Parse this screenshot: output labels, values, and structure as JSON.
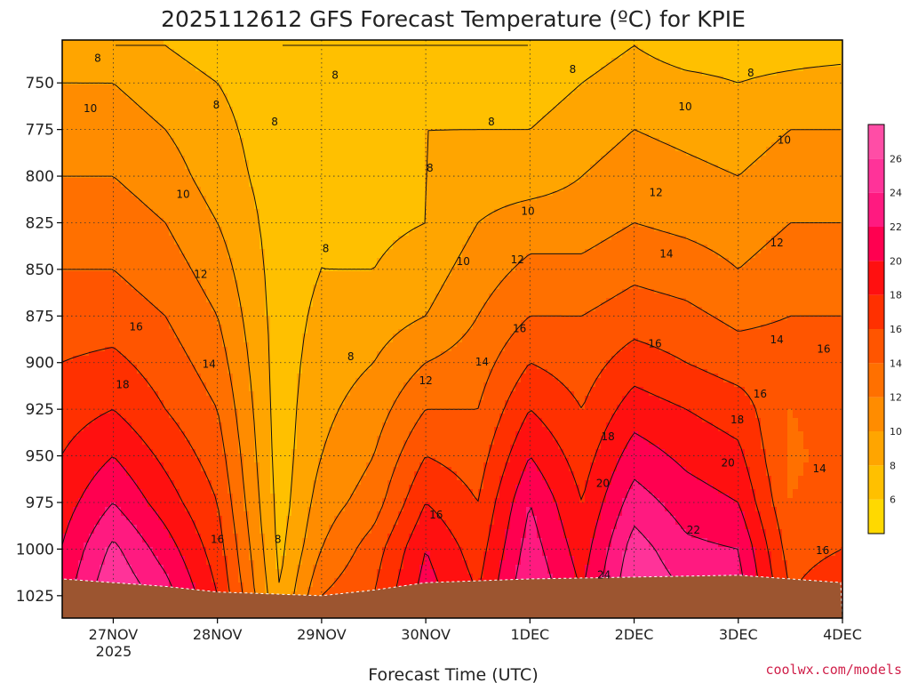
{
  "chart_data": {
    "type": "heatmap",
    "title": "2025112612 GFS Forecast Temperature (ºC) for KPIE",
    "xlabel": "Forecast Time (UTC)",
    "ylabel": "",
    "credit": "coolwx.com/models",
    "x_ticks": [
      "27NOV",
      "28NOV",
      "29NOV",
      "30NOV",
      "1DEC",
      "2DEC",
      "3DEC",
      "4DEC"
    ],
    "x_year": "2025",
    "xlim_days": [
      -0.49,
      7.0
    ],
    "y_ticks": [
      750,
      775,
      800,
      825,
      850,
      875,
      900,
      925,
      950,
      975,
      1000,
      1025
    ],
    "y_tick_labels": [
      "750",
      "775",
      "800",
      "825",
      "850",
      "875",
      "900",
      "925",
      "950",
      "975",
      "1000",
      "1025"
    ],
    "ylim_hPa": [
      727,
      1037
    ],
    "colorbar": {
      "levels": [
        6,
        8,
        10,
        12,
        14,
        16,
        18,
        20,
        22,
        24,
        26
      ],
      "labels": [
        "6",
        "8",
        "10",
        "12",
        "14",
        "16",
        "18",
        "20",
        "22",
        "24",
        "26"
      ],
      "range": [
        4,
        28
      ],
      "colors": [
        "#ffd900",
        "#ffc000",
        "#ffa500",
        "#ff8c00",
        "#ff7000",
        "#ff5500",
        "#ff3000",
        "#ff1010",
        "#ff0050",
        "#ff1a80",
        "#ff3399",
        "#ff4da6"
      ]
    },
    "surface_pressure_hPa": [
      1016,
      1018,
      1020,
      1023,
      1024,
      1025,
      1022,
      1018,
      1017,
      1016,
      1015,
      1014,
      1018
    ],
    "surface_time_days": [
      -0.49,
      0.0,
      0.5,
      1.0,
      1.5,
      2.0,
      2.5,
      3.0,
      3.5,
      4.0,
      5.0,
      6.0,
      7.0
    ],
    "profile_times_days": [
      -0.5,
      0.0,
      0.5,
      1.0,
      1.6,
      2.0,
      2.5,
      3.0,
      3.5,
      4.0,
      4.5,
      5.0,
      5.5,
      6.0,
      6.5,
      7.0
    ],
    "profile_pressures_hPa": [
      730,
      750,
      775,
      800,
      825,
      850,
      875,
      900,
      925,
      950,
      975,
      1000,
      1025,
      1040
    ],
    "temperature_profiles_C": [
      [
        9,
        10,
        11,
        12,
        13,
        14,
        15,
        16,
        17,
        18,
        19,
        20,
        21,
        22
      ],
      [
        8,
        10,
        11,
        12,
        13,
        14,
        15,
        16.5,
        18,
        20,
        22,
        24.5,
        26,
        27
      ],
      [
        8,
        9,
        10,
        11,
        12,
        13,
        14,
        15,
        16,
        17.5,
        19,
        21,
        23,
        24
      ],
      [
        7,
        8,
        8.5,
        9,
        10,
        11,
        12,
        13,
        14,
        15,
        16,
        17,
        18,
        19
      ],
      [
        6,
        7,
        7,
        7,
        7,
        7,
        7,
        7,
        7,
        7,
        7,
        7.5,
        8,
        9
      ],
      [
        6,
        7,
        7.5,
        8,
        8,
        8,
        8.5,
        9,
        9.5,
        10,
        11,
        12,
        14,
        15
      ],
      [
        6,
        7,
        7.5,
        7.5,
        7.5,
        8,
        9,
        10,
        11,
        12,
        13,
        15,
        16,
        17
      ],
      [
        6,
        7,
        8,
        8,
        8,
        9,
        10,
        12,
        14,
        16,
        18,
        20,
        21,
        22
      ],
      [
        6,
        7,
        8,
        9,
        10,
        11,
        12,
        13,
        14,
        15,
        16,
        17,
        18,
        19
      ],
      [
        6,
        7,
        8,
        9,
        11,
        12.5,
        14,
        16,
        18,
        20,
        22,
        23,
        24,
        25
      ],
      [
        7,
        8,
        9,
        10,
        11,
        12.5,
        14,
        15,
        16,
        17,
        18,
        19,
        20,
        21
      ],
      [
        8,
        9,
        10,
        11,
        12,
        13.5,
        15,
        17,
        19,
        21,
        23,
        25,
        26,
        27
      ],
      [
        7,
        8.5,
        9.5,
        10.5,
        11.5,
        13,
        14.5,
        16,
        18,
        19.5,
        21,
        22.5,
        24,
        25
      ],
      [
        7,
        8,
        9,
        10,
        11,
        12,
        13.5,
        15,
        17,
        18.5,
        20,
        22,
        23,
        24
      ],
      [
        7,
        8.5,
        10,
        11,
        12,
        13,
        14,
        15,
        14,
        13.5,
        14,
        15,
        16,
        17
      ],
      [
        7,
        9,
        10,
        11,
        12,
        13,
        14,
        15,
        15,
        15,
        15.5,
        16,
        18,
        19
      ]
    ],
    "contour_labels": [
      {
        "text": "8",
        "t": -0.15,
        "p": 737
      },
      {
        "text": "10",
        "t": -0.22,
        "p": 764
      },
      {
        "text": "8",
        "t": 0.99,
        "p": 762
      },
      {
        "text": "10",
        "t": 0.67,
        "p": 810
      },
      {
        "text": "12",
        "t": 0.84,
        "p": 853
      },
      {
        "text": "16",
        "t": 0.22,
        "p": 881
      },
      {
        "text": "14",
        "t": 0.92,
        "p": 901
      },
      {
        "text": "18",
        "t": 0.09,
        "p": 912
      },
      {
        "text": "8",
        "t": 1.55,
        "p": 771
      },
      {
        "text": "8",
        "t": 2.13,
        "p": 746
      },
      {
        "text": "8",
        "t": 2.04,
        "p": 839
      },
      {
        "text": "8",
        "t": 2.28,
        "p": 897
      },
      {
        "text": "8",
        "t": 1.58,
        "p": 995
      },
      {
        "text": "16",
        "t": 1.0,
        "p": 995
      },
      {
        "text": "8",
        "t": 3.04,
        "p": 796
      },
      {
        "text": "12",
        "t": 3.0,
        "p": 910
      },
      {
        "text": "16",
        "t": 3.1,
        "p": 982
      },
      {
        "text": "10",
        "t": 3.36,
        "p": 846
      },
      {
        "text": "8",
        "t": 3.63,
        "p": 771
      },
      {
        "text": "14",
        "t": 3.54,
        "p": 900
      },
      {
        "text": "10",
        "t": 3.98,
        "p": 819
      },
      {
        "text": "12",
        "t": 3.88,
        "p": 845
      },
      {
        "text": "16",
        "t": 3.9,
        "p": 882
      },
      {
        "text": "8",
        "t": 4.41,
        "p": 743
      },
      {
        "text": "18",
        "t": 4.75,
        "p": 940
      },
      {
        "text": "20",
        "t": 4.7,
        "p": 965
      },
      {
        "text": "24",
        "t": 4.71,
        "p": 1014
      },
      {
        "text": "12",
        "t": 5.21,
        "p": 809
      },
      {
        "text": "14",
        "t": 5.31,
        "p": 842
      },
      {
        "text": "10",
        "t": 5.49,
        "p": 763
      },
      {
        "text": "16",
        "t": 5.2,
        "p": 890
      },
      {
        "text": "22",
        "t": 5.57,
        "p": 990
      },
      {
        "text": "18",
        "t": 5.99,
        "p": 931
      },
      {
        "text": "20",
        "t": 5.9,
        "p": 954
      },
      {
        "text": "8",
        "t": 6.12,
        "p": 745
      },
      {
        "text": "10",
        "t": 6.44,
        "p": 781
      },
      {
        "text": "12",
        "t": 6.37,
        "p": 836
      },
      {
        "text": "14",
        "t": 6.37,
        "p": 888
      },
      {
        "text": "16",
        "t": 6.21,
        "p": 917
      },
      {
        "text": "16",
        "t": 6.82,
        "p": 893
      },
      {
        "text": "14",
        "t": 6.78,
        "p": 957
      },
      {
        "text": "16",
        "t": 6.81,
        "p": 1001
      }
    ]
  }
}
